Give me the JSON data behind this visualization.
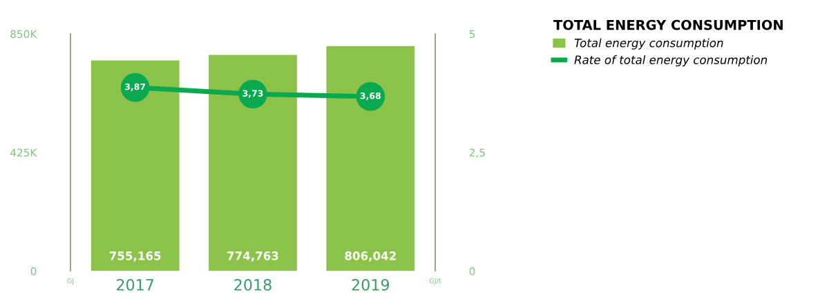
{
  "chart_data": {
    "type": "bar",
    "legend_title": "TOTAL ENERGY CONSUMPTION",
    "ylabel": "GJ",
    "y2label": "GJ/t",
    "categories": [
      "2017",
      "2018",
      "2019"
    ],
    "series": [
      {
        "name": "Total energy consumption",
        "color": "#8bc34a",
        "values": [
          755165,
          774763,
          806042
        ],
        "value_labels": [
          "755,165",
          "774,763",
          "806,042"
        ]
      },
      {
        "name": "Rate of total energy consumption",
        "type": "line",
        "axis": "y2",
        "color": "#0aa84f",
        "marker": "circle",
        "values": [
          3.87,
          3.73,
          3.68
        ],
        "value_labels": [
          "3,87",
          "3,73",
          "3,68"
        ]
      }
    ],
    "ylim": [
      0,
      850000
    ],
    "yticks": [
      0,
      {
        "value": 425000,
        "label": "425K"
      },
      {
        "value": 850000,
        "label": "850K"
      }
    ],
    "y2lim": [
      0,
      5
    ],
    "y2ticks": [
      0,
      {
        "value": 2.5,
        "label": "2,5"
      },
      5
    ],
    "grid": false,
    "legend": "top right"
  }
}
